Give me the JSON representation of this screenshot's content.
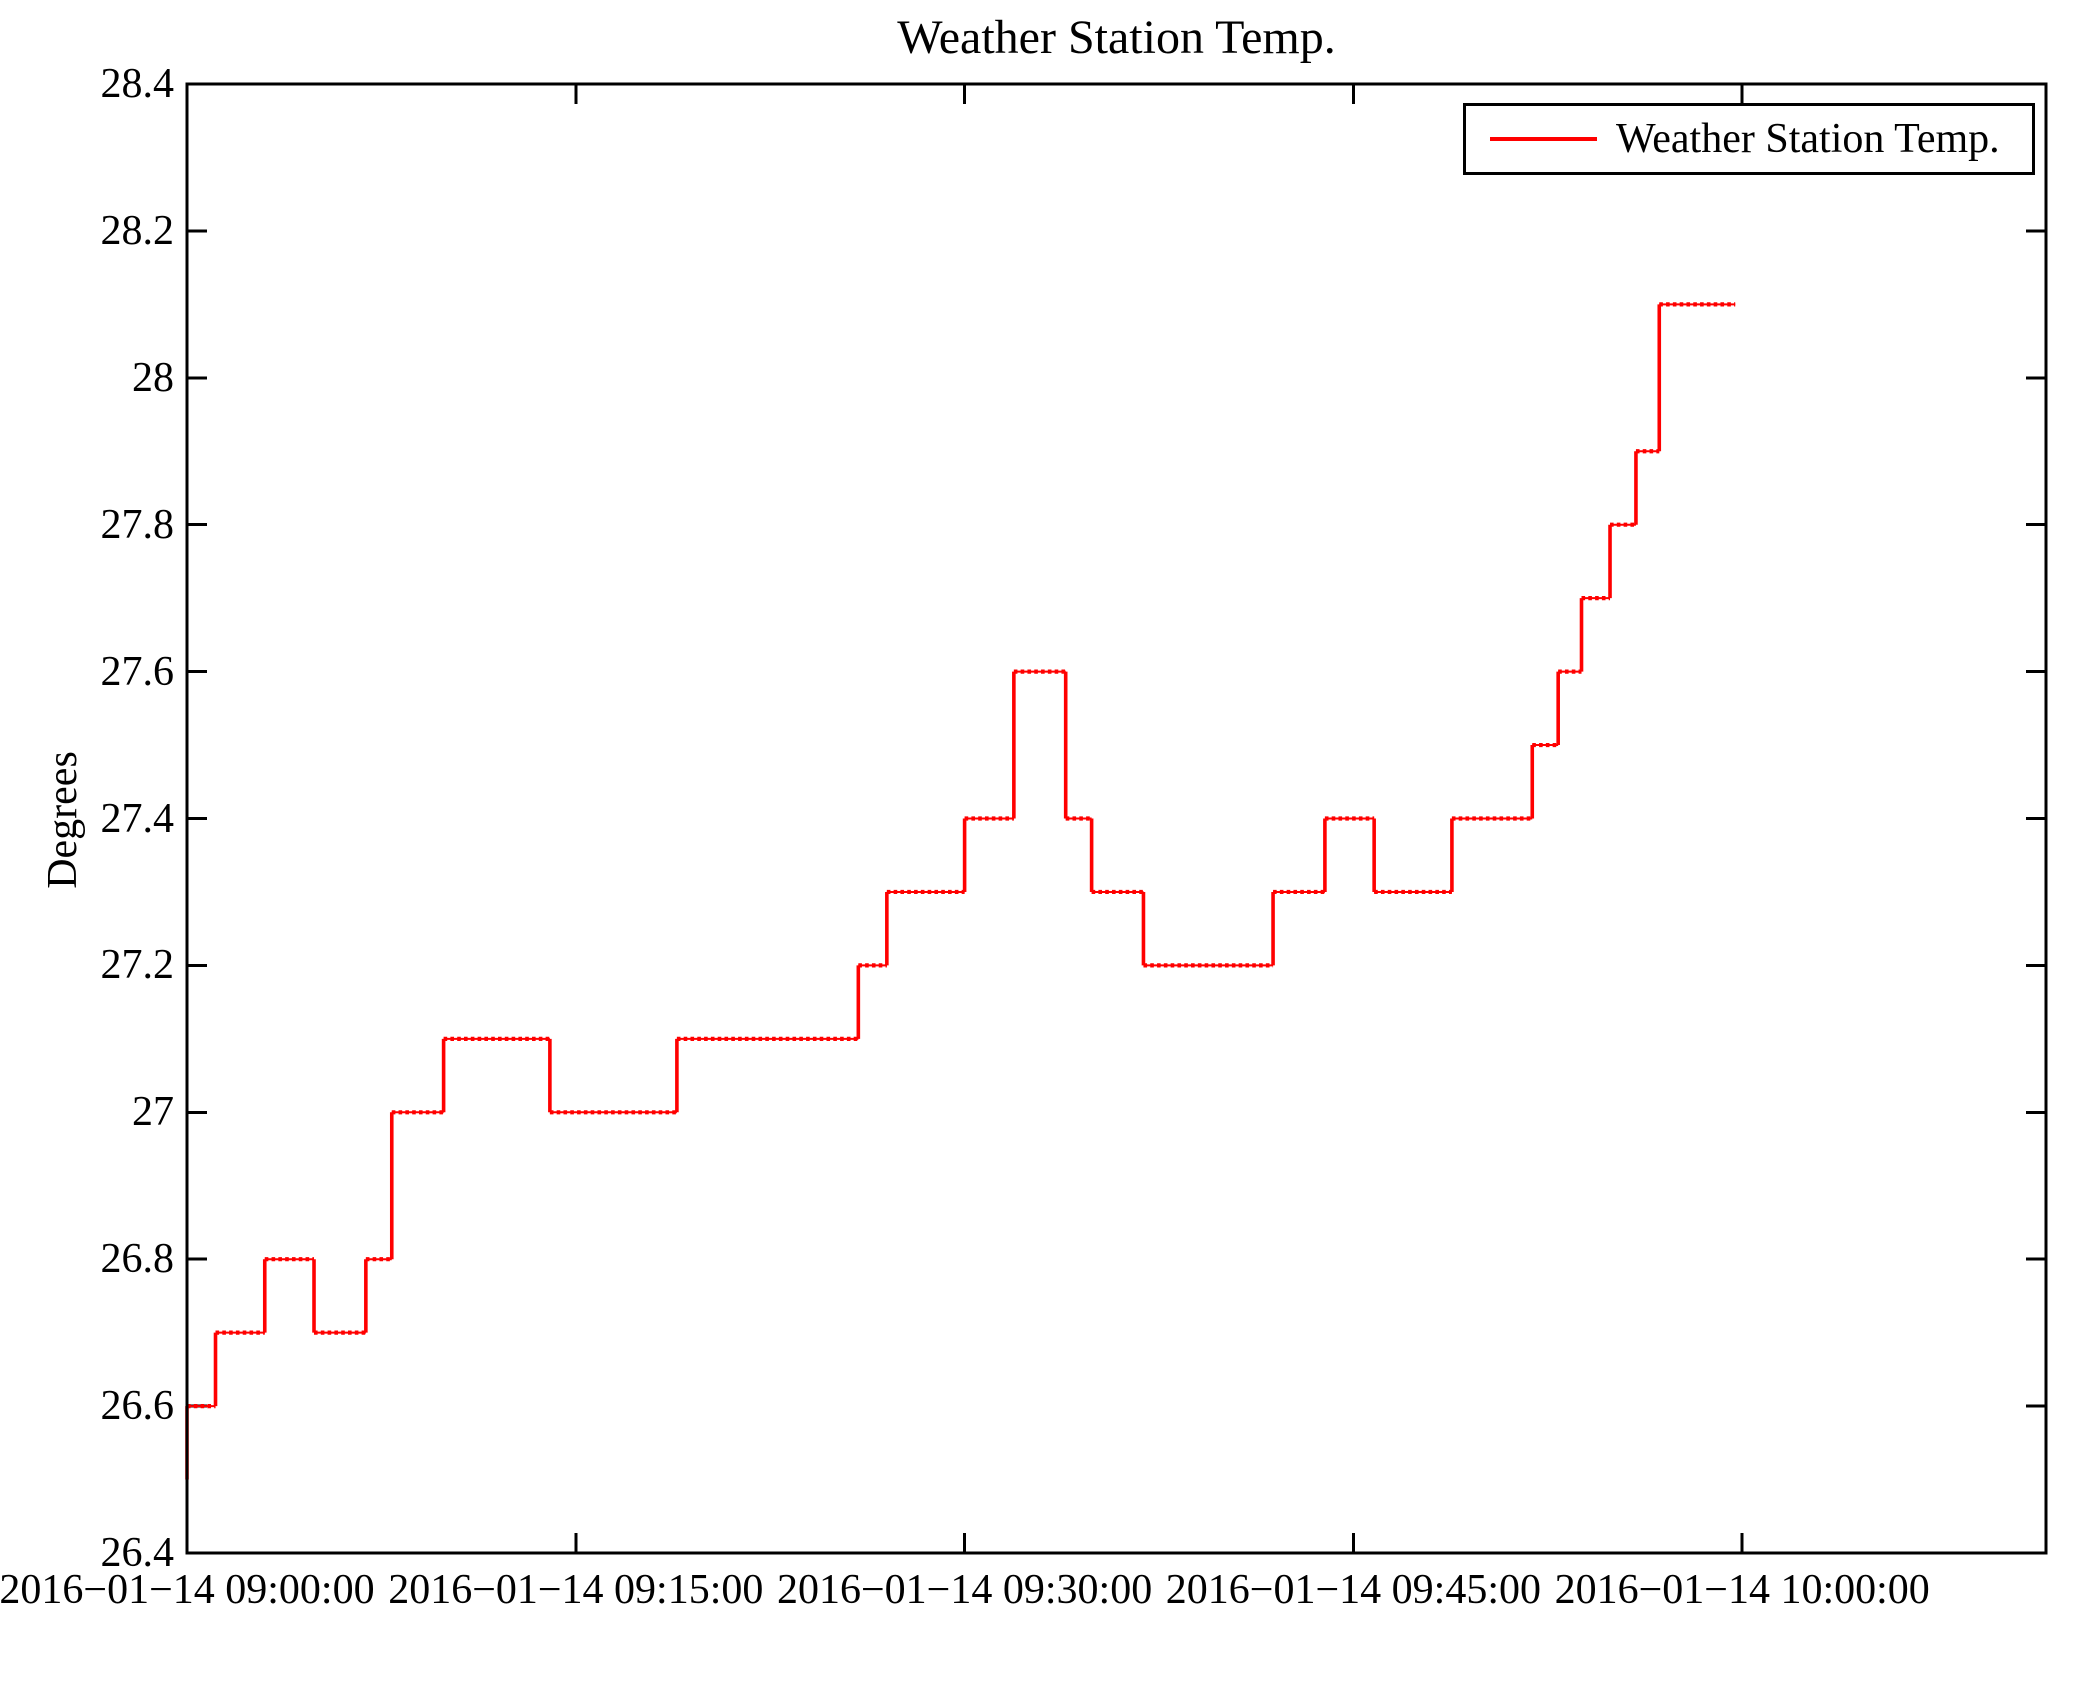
{
  "chart_data": {
    "type": "line",
    "subtype": "step-post",
    "title": "Weather Station Temp.",
    "ylabel": "Degrees",
    "xlabel": "",
    "grid": false,
    "legend": {
      "position": "upper right",
      "entries": [
        {
          "label": "Weather Station Temp.",
          "color": "#ff0000"
        }
      ]
    },
    "line_color": "#ff0000",
    "frame_color": "#000000",
    "ylim": [
      26.4,
      28.4
    ],
    "xlim_minutes_after_0900": [
      0,
      71.72
    ],
    "y_ticks": [
      {
        "v": 28.4,
        "label": "28.4"
      },
      {
        "v": 28.2,
        "label": "28.2"
      },
      {
        "v": 28.0,
        "label": "28"
      },
      {
        "v": 27.8,
        "label": "27.8"
      },
      {
        "v": 27.6,
        "label": "27.6"
      },
      {
        "v": 27.4,
        "label": "27.4"
      },
      {
        "v": 27.2,
        "label": "27.2"
      },
      {
        "v": 27.0,
        "label": "27"
      },
      {
        "v": 26.8,
        "label": "26.8"
      },
      {
        "v": 26.6,
        "label": "26.6"
      },
      {
        "v": 26.4,
        "label": "26.4"
      }
    ],
    "x_ticks": [
      {
        "minute": 0,
        "label": "2016−01−14 09:00:00"
      },
      {
        "minute": 15,
        "label": "2016−01−14 09:15:00"
      },
      {
        "minute": 30,
        "label": "2016−01−14 09:30:00"
      },
      {
        "minute": 45,
        "label": "2016−01−14 09:45:00"
      },
      {
        "minute": 60,
        "label": "2016−01−14 10:00:00"
      }
    ],
    "series_name": "Weather Station Temp.",
    "start_value_degrees": 26.5,
    "end_minute": 59.73,
    "steps_minutes_value": [
      {
        "t": 0.0,
        "v": 26.6
      },
      {
        "t": 1.1,
        "v": 26.7
      },
      {
        "t": 3.0,
        "v": 26.8
      },
      {
        "t": 4.9,
        "v": 26.7
      },
      {
        "t": 6.9,
        "v": 26.8
      },
      {
        "t": 7.9,
        "v": 27.0
      },
      {
        "t": 9.9,
        "v": 27.1
      },
      {
        "t": 14.0,
        "v": 27.0
      },
      {
        "t": 18.9,
        "v": 27.1
      },
      {
        "t": 25.9,
        "v": 27.2
      },
      {
        "t": 27.0,
        "v": 27.3
      },
      {
        "t": 30.0,
        "v": 27.4
      },
      {
        "t": 31.9,
        "v": 27.6
      },
      {
        "t": 33.9,
        "v": 27.4
      },
      {
        "t": 34.9,
        "v": 27.3
      },
      {
        "t": 36.9,
        "v": 27.2
      },
      {
        "t": 41.9,
        "v": 27.3
      },
      {
        "t": 43.9,
        "v": 27.4
      },
      {
        "t": 45.8,
        "v": 27.3
      },
      {
        "t": 48.8,
        "v": 27.4
      },
      {
        "t": 51.9,
        "v": 27.5
      },
      {
        "t": 52.9,
        "v": 27.6
      },
      {
        "t": 53.8,
        "v": 27.7
      },
      {
        "t": 54.9,
        "v": 27.8
      },
      {
        "t": 55.9,
        "v": 27.9
      },
      {
        "t": 56.8,
        "v": 28.1
      }
    ]
  }
}
